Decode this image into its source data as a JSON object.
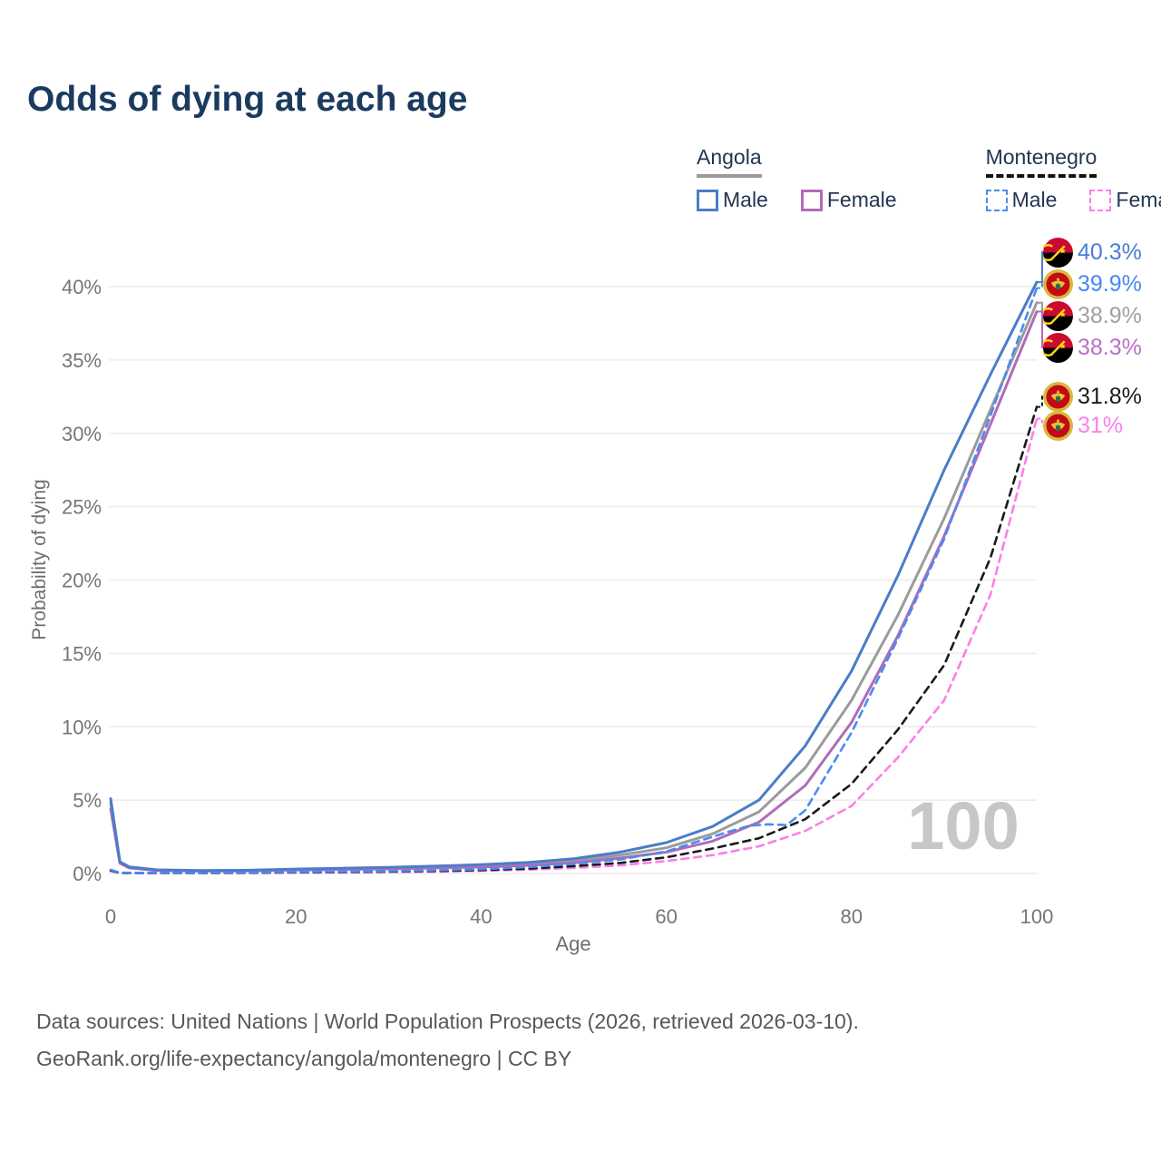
{
  "title": "Odds of dying at each age",
  "watermark": "100",
  "legend": {
    "groups": [
      {
        "name": "Angola",
        "line_style": "solid",
        "underline_color": "#9a9a9a",
        "items": [
          {
            "label": "Male",
            "color": "#4a7dc9"
          },
          {
            "label": "Female",
            "color": "#b16bb8"
          }
        ]
      },
      {
        "name": "Montenegro",
        "line_style": "dashed",
        "underline_color": "#121212",
        "items": [
          {
            "label": "Male",
            "color": "#4a8bf0"
          },
          {
            "label": "Female",
            "color": "#fb7fe8"
          }
        ]
      }
    ]
  },
  "x_axis": {
    "title": "Age",
    "tick_values": [
      0,
      20,
      40,
      60,
      80,
      100
    ],
    "range": [
      0,
      100
    ]
  },
  "y_axis": {
    "title": "Probability of dying",
    "tick_labels": [
      "0%",
      "5%",
      "10%",
      "15%",
      "20%",
      "25%",
      "30%",
      "35%",
      "40%"
    ],
    "tick_values": [
      0,
      5,
      10,
      15,
      20,
      25,
      30,
      35,
      40
    ],
    "range": [
      0,
      42
    ]
  },
  "footer": {
    "line1": "Data sources: United Nations | World Population Prospects (2026, retrieved 2026-03-10).",
    "line2": "GeoRank.org/life-expectancy/angola/montenegro | CC BY"
  },
  "chart_data": {
    "type": "line",
    "x_unit": "age (years)",
    "y_unit": "probability of dying (%)",
    "xlim": [
      0,
      100
    ],
    "ylim": [
      0,
      42
    ],
    "grid": "horizontal",
    "current_age_indicator": "100",
    "series": [
      {
        "name": "Angola Male",
        "flag": "angola",
        "dash": "solid",
        "color": "#4a7dc9",
        "label_color": "#4a7dd2",
        "end_label": "40.3%",
        "end_value": 40.3,
        "points": [
          [
            0,
            5.1
          ],
          [
            1,
            0.8
          ],
          [
            2,
            0.45
          ],
          [
            5,
            0.25
          ],
          [
            10,
            0.2
          ],
          [
            15,
            0.22
          ],
          [
            20,
            0.3
          ],
          [
            25,
            0.36
          ],
          [
            30,
            0.42
          ],
          [
            35,
            0.5
          ],
          [
            40,
            0.6
          ],
          [
            45,
            0.75
          ],
          [
            50,
            1.0
          ],
          [
            55,
            1.45
          ],
          [
            60,
            2.1
          ],
          [
            65,
            3.2
          ],
          [
            70,
            5.0
          ],
          [
            75,
            8.7
          ],
          [
            80,
            13.8
          ],
          [
            85,
            20.3
          ],
          [
            90,
            27.5
          ],
          [
            95,
            34.0
          ],
          [
            100,
            40.3
          ]
        ]
      },
      {
        "name": "Montenegro Male",
        "flag": "montenegro",
        "dash": "dashed",
        "color": "#4a8bf0",
        "label_color": "#448af2",
        "end_label": "39.9%",
        "end_value": 39.9,
        "points": [
          [
            0,
            0.25
          ],
          [
            1,
            0.05
          ],
          [
            5,
            0.04
          ],
          [
            10,
            0.04
          ],
          [
            15,
            0.07
          ],
          [
            20,
            0.1
          ],
          [
            25,
            0.13
          ],
          [
            30,
            0.16
          ],
          [
            35,
            0.21
          ],
          [
            40,
            0.29
          ],
          [
            45,
            0.43
          ],
          [
            50,
            0.65
          ],
          [
            55,
            0.95
          ],
          [
            60,
            1.5
          ],
          [
            65,
            2.5
          ],
          [
            67,
            2.9
          ],
          [
            69,
            3.25
          ],
          [
            71,
            3.35
          ],
          [
            73,
            3.3
          ],
          [
            75,
            4.3
          ],
          [
            80,
            9.6
          ],
          [
            85,
            16.0
          ],
          [
            90,
            22.8
          ],
          [
            95,
            31.2
          ],
          [
            100,
            39.9
          ]
        ]
      },
      {
        "name": "Angola Both sexes",
        "flag": "angola",
        "dash": "solid",
        "color": "#9b9b9b",
        "label_color": "#a0a0a0",
        "end_label": "38.9%",
        "end_value": 38.9,
        "points": [
          [
            0,
            4.8
          ],
          [
            1,
            0.75
          ],
          [
            2,
            0.4
          ],
          [
            5,
            0.23
          ],
          [
            10,
            0.18
          ],
          [
            15,
            0.2
          ],
          [
            20,
            0.26
          ],
          [
            25,
            0.31
          ],
          [
            30,
            0.37
          ],
          [
            35,
            0.44
          ],
          [
            40,
            0.52
          ],
          [
            45,
            0.65
          ],
          [
            50,
            0.88
          ],
          [
            55,
            1.25
          ],
          [
            60,
            1.75
          ],
          [
            65,
            2.7
          ],
          [
            70,
            4.2
          ],
          [
            75,
            7.2
          ],
          [
            80,
            11.8
          ],
          [
            85,
            17.6
          ],
          [
            90,
            24.2
          ],
          [
            95,
            31.6
          ],
          [
            100,
            38.9
          ]
        ]
      },
      {
        "name": "Angola Female",
        "flag": "angola",
        "dash": "solid",
        "color": "#b16bb8",
        "label_color": "#b873c4",
        "end_label": "38.3%",
        "end_value": 38.3,
        "points": [
          [
            0,
            4.4
          ],
          [
            1,
            0.7
          ],
          [
            2,
            0.38
          ],
          [
            5,
            0.2
          ],
          [
            10,
            0.16
          ],
          [
            15,
            0.18
          ],
          [
            20,
            0.23
          ],
          [
            25,
            0.27
          ],
          [
            30,
            0.31
          ],
          [
            35,
            0.37
          ],
          [
            40,
            0.44
          ],
          [
            45,
            0.55
          ],
          [
            50,
            0.73
          ],
          [
            55,
            1.05
          ],
          [
            60,
            1.45
          ],
          [
            65,
            2.2
          ],
          [
            70,
            3.5
          ],
          [
            75,
            6.0
          ],
          [
            80,
            10.3
          ],
          [
            85,
            16.2
          ],
          [
            90,
            23.0
          ],
          [
            95,
            30.6
          ],
          [
            100,
            38.3
          ]
        ]
      },
      {
        "name": "Montenegro Both sexes",
        "flag": "montenegro",
        "dash": "dashed",
        "color": "#1a1a1a",
        "label_color": "#1a1a1a",
        "end_label": "31.8%",
        "end_value": 31.8,
        "points": [
          [
            0,
            0.2
          ],
          [
            1,
            0.04
          ],
          [
            5,
            0.03
          ],
          [
            10,
            0.03
          ],
          [
            15,
            0.05
          ],
          [
            20,
            0.08
          ],
          [
            25,
            0.1
          ],
          [
            30,
            0.13
          ],
          [
            35,
            0.17
          ],
          [
            40,
            0.23
          ],
          [
            45,
            0.33
          ],
          [
            50,
            0.5
          ],
          [
            55,
            0.72
          ],
          [
            60,
            1.1
          ],
          [
            65,
            1.7
          ],
          [
            70,
            2.4
          ],
          [
            75,
            3.7
          ],
          [
            80,
            6.1
          ],
          [
            85,
            9.8
          ],
          [
            90,
            14.2
          ],
          [
            95,
            21.5
          ],
          [
            100,
            31.8
          ]
        ]
      },
      {
        "name": "Montenegro Female",
        "flag": "montenegro",
        "dash": "dashed",
        "color": "#fb7fe8",
        "label_color": "#fb80ea",
        "end_label": "31%",
        "end_value": 31.0,
        "points": [
          [
            0,
            0.18
          ],
          [
            1,
            0.03
          ],
          [
            5,
            0.02
          ],
          [
            10,
            0.02
          ],
          [
            15,
            0.03
          ],
          [
            20,
            0.05
          ],
          [
            25,
            0.07
          ],
          [
            30,
            0.1
          ],
          [
            35,
            0.13
          ],
          [
            40,
            0.18
          ],
          [
            45,
            0.26
          ],
          [
            50,
            0.38
          ],
          [
            55,
            0.55
          ],
          [
            60,
            0.85
          ],
          [
            65,
            1.25
          ],
          [
            70,
            1.85
          ],
          [
            75,
            2.9
          ],
          [
            80,
            4.6
          ],
          [
            85,
            7.9
          ],
          [
            90,
            11.8
          ],
          [
            95,
            19.0
          ],
          [
            100,
            31.0
          ]
        ]
      }
    ]
  }
}
